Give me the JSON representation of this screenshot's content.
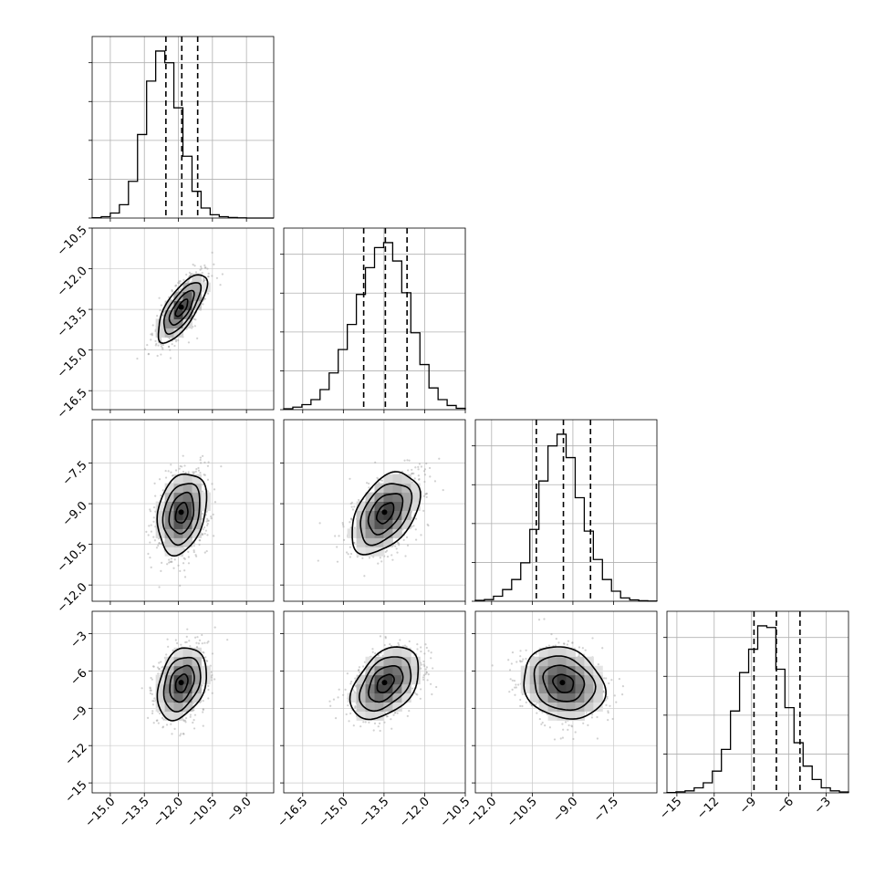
{
  "chart_data": {
    "type": "corner",
    "grid": true,
    "parameters": [
      {
        "range": [
          -15.8,
          -7.8
        ],
        "ticks": [
          -15.0,
          -13.5,
          -12.0,
          -10.5,
          -9.0
        ],
        "tick_labels": [
          "−15.0",
          "−13.5",
          "−12.0",
          "−10.5",
          "−9.0"
        ],
        "quantiles": [
          -12.55,
          -11.85,
          -11.15
        ],
        "hist": [
          0.002,
          0.008,
          0.03,
          0.08,
          0.22,
          0.5,
          0.82,
          1.0,
          0.93,
          0.66,
          0.37,
          0.16,
          0.06,
          0.02,
          0.008,
          0.003,
          0.001,
          0.0,
          0.0,
          0.0
        ]
      },
      {
        "range": [
          -17.2,
          -10.5
        ],
        "ticks": [
          -16.5,
          -15.0,
          -13.5,
          -12.0,
          -10.5
        ],
        "tick_labels": [
          "−16.5",
          "−15.0",
          "−13.5",
          "−12.0",
          "−10.5"
        ],
        "quantiles": [
          -14.25,
          -13.45,
          -12.65
        ],
        "hist": [
          0.005,
          0.015,
          0.03,
          0.06,
          0.12,
          0.22,
          0.36,
          0.51,
          0.69,
          0.85,
          0.97,
          1.0,
          0.89,
          0.7,
          0.46,
          0.27,
          0.13,
          0.06,
          0.025,
          0.008
        ]
      },
      {
        "range": [
          -12.6,
          -5.9
        ],
        "ticks": [
          -12.0,
          -10.5,
          -9.0,
          -7.5
        ],
        "tick_labels": [
          "−12.0",
          "−10.5",
          "−9.0",
          "−7.5"
        ],
        "quantiles": [
          -10.35,
          -9.35,
          -8.35
        ],
        "hist": [
          0.005,
          0.01,
          0.03,
          0.07,
          0.13,
          0.23,
          0.43,
          0.72,
          0.93,
          1.0,
          0.86,
          0.62,
          0.42,
          0.25,
          0.13,
          0.06,
          0.02,
          0.008,
          0.003,
          0.001
        ]
      },
      {
        "range": [
          -15.8,
          -1.2
        ],
        "ticks": [
          -15,
          -12,
          -9,
          -6,
          -3
        ],
        "tick_labels": [
          "−15",
          "−12",
          "−9",
          "−6",
          "−3"
        ],
        "quantiles": [
          -8.8,
          -7.0,
          -5.1
        ],
        "hist": [
          0.002,
          0.006,
          0.012,
          0.03,
          0.06,
          0.13,
          0.26,
          0.49,
          0.72,
          0.86,
          1.0,
          0.99,
          0.74,
          0.51,
          0.3,
          0.16,
          0.08,
          0.03,
          0.012,
          0.005
        ]
      }
    ],
    "pairs": [
      {
        "row": 1,
        "col": 0,
        "mean": [
          -11.85,
          -13.45
        ],
        "sd": [
          0.54,
          0.63
        ],
        "rho": 0.72
      },
      {
        "row": 2,
        "col": 0,
        "mean": [
          -11.85,
          -9.35
        ],
        "sd": [
          0.54,
          0.75
        ],
        "rho": 0.25
      },
      {
        "row": 2,
        "col": 1,
        "mean": [
          -13.45,
          -9.35
        ],
        "sd": [
          0.63,
          0.75
        ],
        "rho": 0.45
      },
      {
        "row": 3,
        "col": 0,
        "mean": [
          -11.85,
          -7.0
        ],
        "sd": [
          0.54,
          1.45
        ],
        "rho": 0.3
      },
      {
        "row": 3,
        "col": 1,
        "mean": [
          -13.45,
          -7.0
        ],
        "sd": [
          0.63,
          1.45
        ],
        "rho": 0.42
      },
      {
        "row": 3,
        "col": 2,
        "mean": [
          -9.35,
          -7.0
        ],
        "sd": [
          0.75,
          1.45
        ],
        "rho": -0.18
      }
    ],
    "contour_levels": [
      0.5,
      1.0,
      1.5,
      2.0
    ]
  }
}
